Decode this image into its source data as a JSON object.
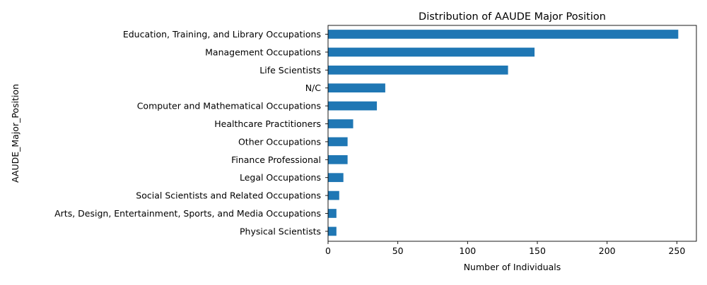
{
  "chart_data": {
    "type": "bar",
    "orientation": "horizontal",
    "title": "Distribution of AAUDE Major Position",
    "xlabel": "Number of Individuals",
    "ylabel": "AAUDE_Major_Position",
    "categories": [
      "Education, Training, and Library Occupations",
      "Management Occupations",
      "Life Scientists",
      "N/C",
      "Computer and Mathematical Occupations",
      "Healthcare Practitioners",
      "Other Occupations",
      "Finance Professional",
      "Legal Occupations",
      "Social Scientists and Related Occupations",
      "Arts, Design, Entertainment, Sports, and Media Occupations",
      "Physical Scientists"
    ],
    "values": [
      251,
      148,
      129,
      41,
      35,
      18,
      14,
      14,
      11,
      8,
      6,
      6
    ],
    "xlim": [
      0,
      264
    ],
    "xticks": [
      0,
      50,
      100,
      150,
      200,
      250
    ],
    "grid": false,
    "bar_color": "#1f77b4"
  }
}
